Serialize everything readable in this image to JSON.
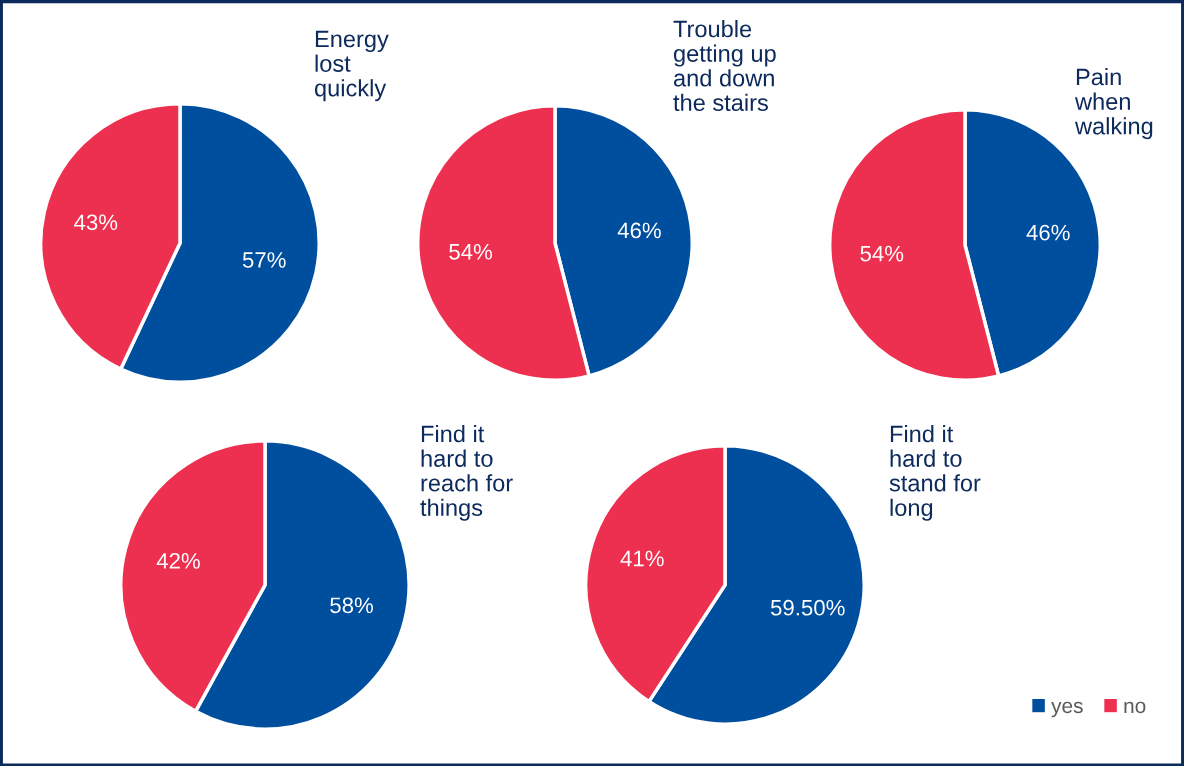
{
  "chart_data": [
    {
      "type": "pie",
      "title": "Energy\nlost\nquickly",
      "categories": [
        "yes",
        "no"
      ],
      "values": [
        57,
        43
      ],
      "colors": [
        "#004f9f",
        "#ee3050"
      ],
      "value_labels": [
        "57%",
        "43%"
      ],
      "legend": "bottom right"
    },
    {
      "type": "pie",
      "title": "Trouble\ngetting up\nand down\nthe stairs",
      "categories": [
        null,
        null
      ],
      "values": [
        46,
        54
      ],
      "colors": [
        "#004f9f",
        "#ee3050"
      ],
      "value_labels": [
        "46%",
        "54%"
      ]
    },
    {
      "type": "pie",
      "title": "Pain\nwhen\nwalking",
      "categories": [
        null,
        null
      ],
      "values": [
        46,
        54
      ],
      "colors": [
        "#004f9f",
        "#ee3050"
      ],
      "value_labels": [
        "46%",
        "54%"
      ]
    },
    {
      "type": "pie",
      "title": "Find it\nhard to\nreach for\nthings",
      "categories": [
        null,
        null
      ],
      "values": [
        58,
        42
      ],
      "colors": [
        "#004f9f",
        "#ee3050"
      ],
      "value_labels": [
        "58%",
        "42%"
      ]
    },
    {
      "type": "pie",
      "title": "Find it\nhard to\nstand for\nlong",
      "categories": [
        null,
        null
      ],
      "values": [
        59.5,
        41
      ],
      "colors": [
        "#004f9f",
        "#ee3050"
      ],
      "value_labels": [
        "59.50%",
        "41%"
      ]
    }
  ]
}
